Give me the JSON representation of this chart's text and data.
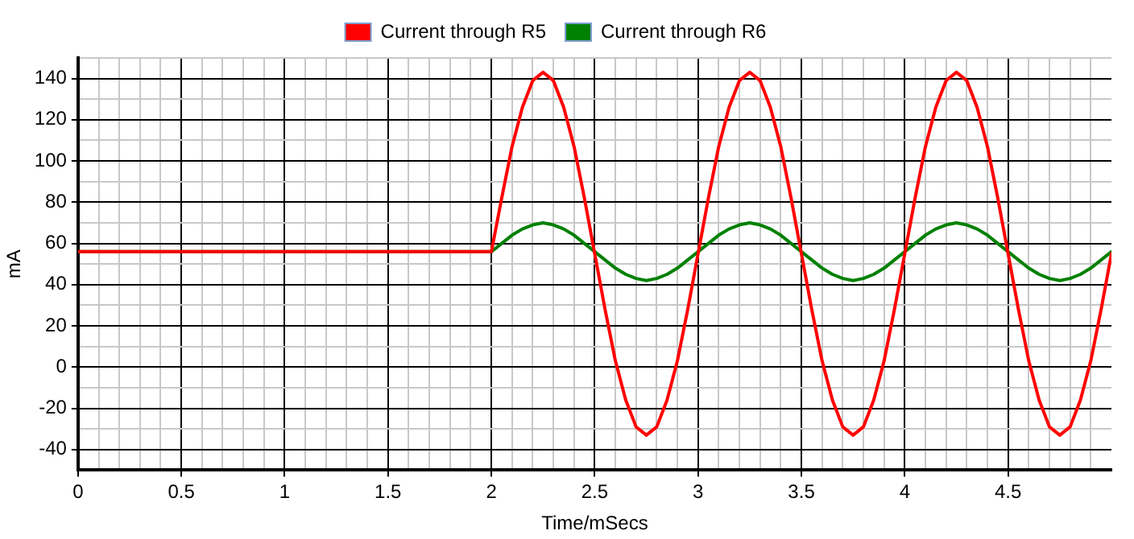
{
  "chart_data": {
    "type": "line",
    "xlabel": "Time/mSecs",
    "ylabel": "mA",
    "x": [
      0,
      2,
      2.05,
      2.1,
      2.15,
      2.2,
      2.25,
      2.3,
      2.35,
      2.4,
      2.45,
      2.5,
      2.55,
      2.6,
      2.65,
      2.7,
      2.75,
      2.8,
      2.85,
      2.9,
      2.95,
      3,
      3.05,
      3.1,
      3.15,
      3.2,
      3.25,
      3.3,
      3.35,
      3.4,
      3.45,
      3.5,
      3.55,
      3.6,
      3.65,
      3.7,
      3.75,
      3.8,
      3.85,
      3.9,
      3.95,
      4,
      4.05,
      4.1,
      4.15,
      4.2,
      4.25,
      4.3,
      4.35,
      4.4,
      4.45,
      4.5,
      4.55,
      4.6,
      4.65,
      4.7,
      4.75,
      4.8,
      4.85,
      4.9,
      4.95,
      5
    ],
    "series": [
      {
        "name": "Current through R5",
        "color": "#ff0000",
        "values": [
          56,
          56,
          82,
          107,
          126,
          139,
          143,
          139,
          126,
          107,
          82,
          55,
          28,
          3,
          -16,
          -29,
          -33,
          -29,
          -16,
          3,
          28,
          55,
          82,
          107,
          126,
          139,
          143,
          139,
          126,
          107,
          82,
          55,
          28,
          3,
          -16,
          -29,
          -33,
          -29,
          -16,
          3,
          28,
          55,
          82,
          107,
          126,
          139,
          143,
          139,
          126,
          107,
          82,
          55,
          28,
          3,
          -16,
          -29,
          -33,
          -29,
          -16,
          3,
          28,
          55
        ]
      },
      {
        "name": "Current through R6",
        "color": "#008000",
        "values": [
          56,
          56,
          60,
          64,
          67,
          69,
          70,
          69,
          67,
          64,
          60,
          56,
          52,
          48,
          45,
          43,
          42,
          43,
          45,
          48,
          52,
          56,
          60,
          64,
          67,
          69,
          70,
          69,
          67,
          64,
          60,
          56,
          52,
          48,
          45,
          43,
          42,
          43,
          45,
          48,
          52,
          56,
          60,
          64,
          67,
          69,
          70,
          69,
          67,
          64,
          60,
          56,
          52,
          48,
          45,
          43,
          42,
          43,
          45,
          48,
          52,
          56
        ]
      }
    ],
    "xlim": [
      0,
      5
    ],
    "xticks": [
      0,
      {
        "value": 0.1,
        "label": null
      },
      {
        "value": 0.2,
        "label": null
      },
      {
        "value": 0.3,
        "label": null
      },
      {
        "value": 0.4,
        "label": null
      },
      0.5,
      {
        "value": 0.6,
        "label": null
      },
      {
        "value": 0.7,
        "label": null
      },
      {
        "value": 0.8,
        "label": null
      },
      {
        "value": 0.9,
        "label": null
      },
      1,
      {
        "value": 1.1,
        "label": null
      },
      {
        "value": 1.2,
        "label": null
      },
      {
        "value": 1.3,
        "label": null
      },
      {
        "value": 1.4,
        "label": null
      },
      1.5,
      {
        "value": 1.6,
        "label": null
      },
      {
        "value": 1.7,
        "label": null
      },
      {
        "value": 1.8,
        "label": null
      },
      {
        "value": 1.9,
        "label": null
      },
      2,
      {
        "value": 2.1,
        "label": null
      },
      {
        "value": 2.2,
        "label": null
      },
      {
        "value": 2.3,
        "label": null
      },
      {
        "value": 2.4,
        "label": null
      },
      2.5,
      {
        "value": 2.6,
        "label": null
      },
      {
        "value": 2.7,
        "label": null
      },
      {
        "value": 2.8,
        "label": null
      },
      {
        "value": 2.9,
        "label": null
      },
      3,
      {
        "value": 3.1,
        "label": null
      },
      {
        "value": 3.2,
        "label": null
      },
      {
        "value": 3.3,
        "label": null
      },
      {
        "value": 3.4,
        "label": null
      },
      3.5,
      {
        "value": 3.6,
        "label": null
      },
      {
        "value": 3.7,
        "label": null
      },
      {
        "value": 3.8,
        "label": null
      },
      {
        "value": 3.9,
        "label": null
      },
      4,
      {
        "value": 4.1,
        "label": null
      },
      {
        "value": 4.2,
        "label": null
      },
      {
        "value": 4.3,
        "label": null
      },
      {
        "value": 4.4,
        "label": null
      },
      4.5,
      {
        "value": 4.6,
        "label": null
      },
      {
        "value": 4.7,
        "label": null
      },
      {
        "value": 4.8,
        "label": null
      },
      {
        "value": 4.9,
        "label": null
      }
    ],
    "ylim": [
      -50,
      150
    ],
    "yticks": [
      -40,
      {
        "value": -30,
        "label": null
      },
      -20,
      {
        "value": -10,
        "label": null
      },
      0,
      {
        "value": 10,
        "label": null
      },
      20,
      {
        "value": 30,
        "label": null
      },
      40,
      {
        "value": 50,
        "label": null
      },
      60,
      {
        "value": 70,
        "label": null
      },
      80,
      {
        "value": 90,
        "label": null
      },
      100,
      {
        "value": 110,
        "label": null
      },
      120,
      {
        "value": 130,
        "label": null
      },
      140,
      {
        "value": 150,
        "label": null
      }
    ],
    "grid": true,
    "legend": "top",
    "marker": "none",
    "line_style": "solid"
  }
}
